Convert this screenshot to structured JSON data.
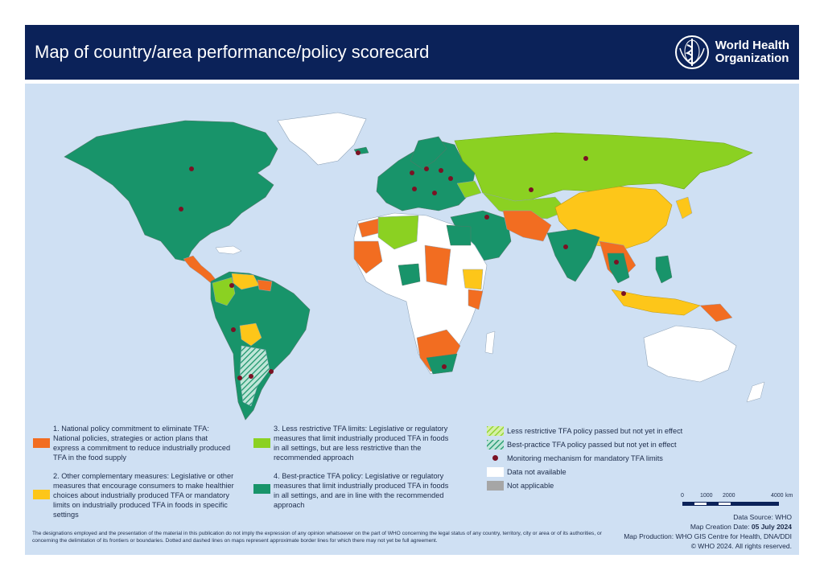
{
  "header": {
    "title": "Map of country/area performance/policy scorecard",
    "org_line1": "World Health",
    "org_line2": "Organization"
  },
  "colors": {
    "header_bg": "#0b2259",
    "ocean": "#cfe0f3",
    "cat1": "#f26d21",
    "cat2": "#fdc619",
    "cat3": "#8bd122",
    "cat4": "#18946a",
    "no_data": "#ffffff",
    "not_applicable": "#a6a6a6",
    "monitoring_dot": "#7a1224"
  },
  "legend": {
    "cat1": "1. National policy commitment to eliminate TFA: National policies, strategies or action plans that express a commitment to reduce industrially produced TFA in the food supply",
    "cat2": "2. Other complementary measures: Legislative or other measures that encourage consumers to make healthier choices about industrially produced TFA or mandatory limits on industrially produced TFA in foods in specific settings",
    "cat3": "3. Less restrictive TFA limits: Legislative or regulatory measures that limit industrially produced TFA in foods in all settings, but are less restrictive than the recommended approach",
    "cat4": "4. Best-practice TFA policy: Legislative or regulatory measures that limit industrially produced TFA in foods in all settings, and are in line with the recommended approach",
    "less_restrictive_passed": "Less restrictive TFA policy passed but not yet in effect",
    "best_practice_passed": "Best-practice TFA policy passed but not yet in effect",
    "monitoring": "Monitoring mechanism for mandatory TFA limits",
    "no_data": "Data not available",
    "not_applicable": "Not applicable"
  },
  "scale": {
    "ticks": [
      "0",
      "1000",
      "2000",
      "4000"
    ],
    "unit": "km"
  },
  "credits": {
    "source": "Data Source: WHO",
    "date_label": "Map Creation Date: ",
    "date_value": "05 July 2024",
    "production": "Map Production: WHO GIS Centre for Health, DNA/DDI",
    "copyright": "© WHO 2024. All rights reserved."
  },
  "disclaimer": "The designations employed and the presentation of the material in this publication do not imply the expression of any opinion whatsoever on the part of WHO concerning the legal status of any country, territory, city or area or of its authorities, or concerning the delimitation of its frontiers or boundaries. Dotted and dashed lines on maps represent approximate border lines for which there may not yet be full agreement."
}
